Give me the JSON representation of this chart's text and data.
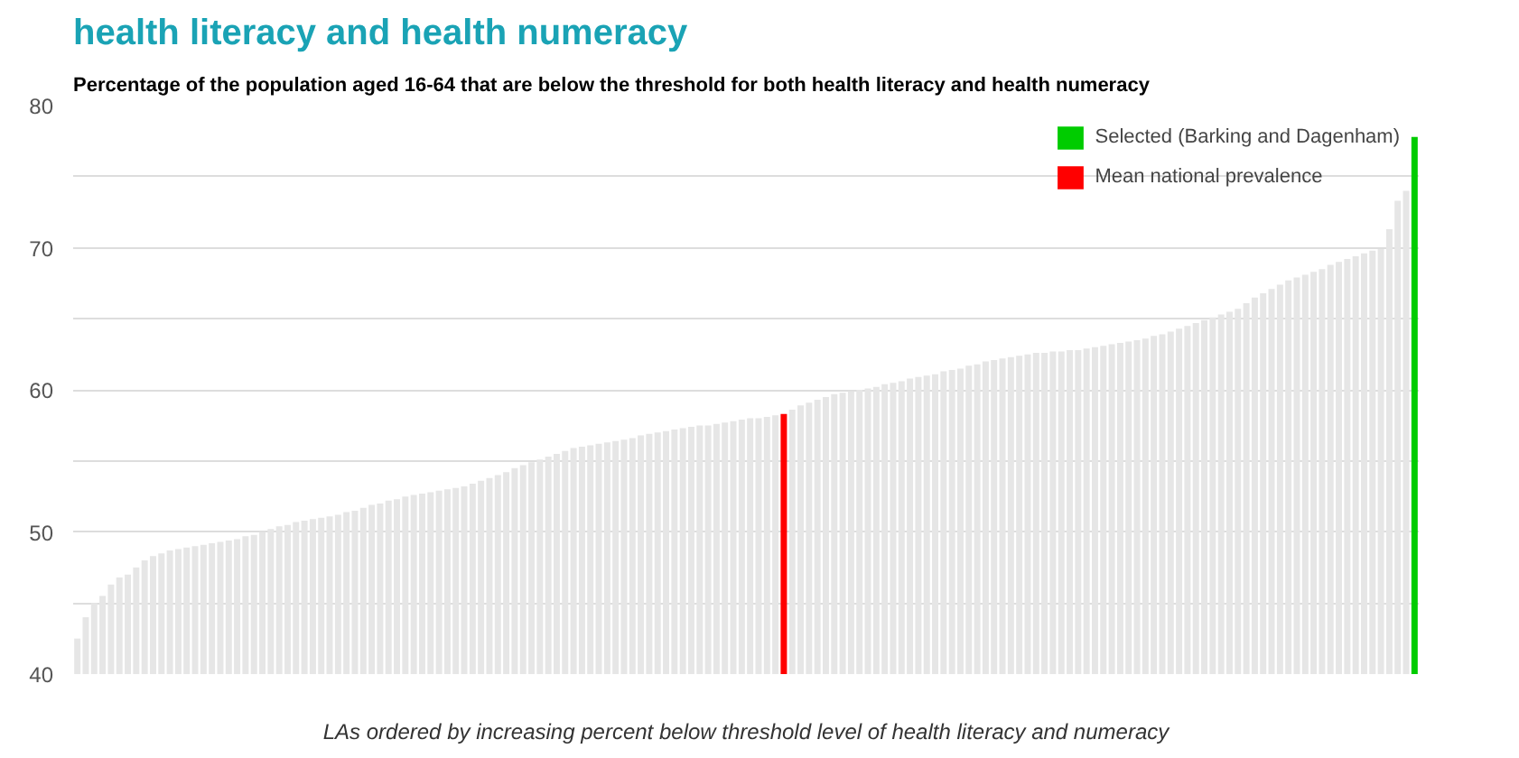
{
  "chart_data": {
    "type": "bar",
    "title": "health literacy and health numeracy",
    "subtitle": "Percentage of the population aged 16-64 that are below the threshold for both health literacy and health numeracy",
    "xlabel": "LAs ordered by increasing percent below threshold level of health literacy and numeracy",
    "categories": [
      null,
      null,
      null,
      null,
      null,
      null,
      null,
      null,
      null,
      null,
      null,
      null,
      null,
      null,
      null,
      null,
      null,
      null,
      null,
      null,
      null,
      null,
      null,
      null,
      null,
      null,
      null,
      null,
      null,
      null,
      null,
      null,
      null,
      null,
      null,
      null,
      null,
      null,
      null,
      null,
      null,
      null,
      null,
      null,
      null,
      null,
      null,
      null,
      null,
      null,
      null,
      null,
      null,
      null,
      null,
      null,
      null,
      null,
      null,
      null,
      null,
      null,
      null,
      null,
      null,
      null,
      null,
      null,
      null,
      null,
      null,
      null,
      null,
      null,
      null,
      null,
      null,
      null,
      null,
      null,
      null,
      null,
      null,
      null,
      null,
      null,
      null,
      null,
      null,
      null,
      null,
      null,
      null,
      null,
      null,
      null,
      null,
      null,
      null,
      null,
      null,
      null,
      null,
      null,
      null,
      null,
      null,
      null,
      null,
      null,
      null,
      null,
      null,
      null,
      null,
      null,
      null,
      null,
      null,
      null,
      null,
      null,
      null,
      null,
      null,
      null,
      null,
      null,
      null,
      null,
      null,
      null,
      null,
      null,
      null,
      null,
      null,
      null,
      null,
      null,
      null,
      null,
      null,
      null,
      null,
      null,
      null,
      null,
      null,
      null,
      null,
      null,
      null,
      null,
      null,
      null,
      null,
      null,
      null,
      null
    ],
    "series": [
      {
        "color": "#e6e6e6",
        "values": [
          42.5,
          44,
          45,
          45.5,
          46.3,
          46.8,
          47,
          47.5,
          48,
          48.3,
          48.5,
          48.7,
          48.8,
          48.9,
          49,
          49.1,
          49.2,
          49.3,
          49.4,
          49.5,
          49.7,
          49.8,
          50,
          50.2,
          50.4,
          50.5,
          50.7,
          50.8,
          50.9,
          51,
          51.1,
          51.2,
          51.4,
          51.5,
          51.7,
          51.9,
          52,
          52.2,
          52.3,
          52.5,
          52.6,
          52.7,
          52.8,
          52.9,
          53,
          53.1,
          53.2,
          53.4,
          53.6,
          53.8,
          54,
          54.2,
          54.5,
          54.7,
          54.9,
          55.1,
          55.3,
          55.5,
          55.7,
          55.9,
          56,
          56.1,
          56.2,
          56.3,
          56.4,
          56.5,
          56.6,
          56.8,
          56.9,
          57,
          57.1,
          57.2,
          57.3,
          57.4,
          57.5,
          57.5,
          57.6,
          57.7,
          57.8,
          57.9,
          58,
          58,
          58.1,
          58.2,
          null,
          58.6,
          58.9,
          59.1,
          59.3,
          59.5,
          59.7,
          59.8,
          59.9,
          60,
          60.1,
          60.2,
          60.4,
          60.5,
          60.6,
          60.8,
          60.9,
          61,
          61.1,
          61.3,
          61.4,
          61.5,
          61.7,
          61.8,
          62,
          62.1,
          62.2,
          62.3,
          62.4,
          62.5,
          62.6,
          62.6,
          62.7,
          62.7,
          62.8,
          62.8,
          62.9,
          63,
          63.1,
          63.2,
          63.3,
          63.4,
          63.5,
          63.6,
          63.8,
          63.9,
          64.1,
          64.3,
          64.5,
          64.7,
          64.9,
          65.1,
          65.3,
          65.5,
          65.7,
          66.1,
          66.5,
          66.8,
          67.1,
          67.4,
          67.7,
          67.9,
          68.1,
          68.3,
          68.5,
          68.8,
          69,
          69.2,
          69.4,
          69.6,
          69.8,
          69.9,
          71.3,
          73.3,
          74,
          null
        ]
      },
      {
        "name": "Selected (Barking and Dagenham)",
        "color": "#00cc00",
        "values": [
          null,
          null,
          null,
          null,
          null,
          null,
          null,
          null,
          null,
          null,
          null,
          null,
          null,
          null,
          null,
          null,
          null,
          null,
          null,
          null,
          null,
          null,
          null,
          null,
          null,
          null,
          null,
          null,
          null,
          null,
          null,
          null,
          null,
          null,
          null,
          null,
          null,
          null,
          null,
          null,
          null,
          null,
          null,
          null,
          null,
          null,
          null,
          null,
          null,
          null,
          null,
          null,
          null,
          null,
          null,
          null,
          null,
          null,
          null,
          null,
          null,
          null,
          null,
          null,
          null,
          null,
          null,
          null,
          null,
          null,
          null,
          null,
          null,
          null,
          null,
          null,
          null,
          null,
          null,
          null,
          null,
          null,
          null,
          null,
          null,
          null,
          null,
          null,
          null,
          null,
          null,
          null,
          null,
          null,
          null,
          null,
          null,
          null,
          null,
          null,
          null,
          null,
          null,
          null,
          null,
          null,
          null,
          null,
          null,
          null,
          null,
          null,
          null,
          null,
          null,
          null,
          null,
          null,
          null,
          null,
          null,
          null,
          null,
          null,
          null,
          null,
          null,
          null,
          null,
          null,
          null,
          null,
          null,
          null,
          null,
          null,
          null,
          null,
          null,
          null,
          null,
          null,
          null,
          null,
          null,
          null,
          null,
          null,
          null,
          null,
          null,
          null,
          null,
          null,
          null,
          null,
          null,
          null,
          null,
          77.8
        ]
      },
      {
        "name": "Mean national prevalence",
        "color": "#ff0000",
        "values": [
          null,
          null,
          null,
          null,
          null,
          null,
          null,
          null,
          null,
          null,
          null,
          null,
          null,
          null,
          null,
          null,
          null,
          null,
          null,
          null,
          null,
          null,
          null,
          null,
          null,
          null,
          null,
          null,
          null,
          null,
          null,
          null,
          null,
          null,
          null,
          null,
          null,
          null,
          null,
          null,
          null,
          null,
          null,
          null,
          null,
          null,
          null,
          null,
          null,
          null,
          null,
          null,
          null,
          null,
          null,
          null,
          null,
          null,
          null,
          null,
          null,
          null,
          null,
          null,
          null,
          null,
          null,
          null,
          null,
          null,
          null,
          null,
          null,
          null,
          null,
          null,
          null,
          null,
          null,
          null,
          null,
          null,
          null,
          null,
          58.3,
          null,
          null,
          null,
          null,
          null,
          null,
          null,
          null,
          null,
          null,
          null,
          null,
          null,
          null,
          null,
          null,
          null,
          null,
          null,
          null,
          null,
          null,
          null,
          null,
          null,
          null,
          null,
          null,
          null,
          null,
          null,
          null,
          null,
          null,
          null,
          null,
          null,
          null,
          null,
          null,
          null,
          null,
          null,
          null,
          null,
          null,
          null,
          null,
          null,
          null,
          null,
          null,
          null,
          null,
          null,
          null,
          null,
          null,
          null,
          null,
          null,
          null,
          null,
          null,
          null,
          null,
          null,
          null,
          null,
          null,
          null,
          null,
          null,
          null,
          null
        ]
      }
    ],
    "ylim": [
      40,
      80
    ],
    "yticks": [
      40,
      {
        "value": 45,
        "label": null
      },
      50,
      {
        "value": 55,
        "label": null
      },
      60,
      {
        "value": 65,
        "label": null
      },
      70,
      {
        "value": 75,
        "label": null
      },
      80
    ],
    "grid": "y",
    "legend": "top right"
  }
}
